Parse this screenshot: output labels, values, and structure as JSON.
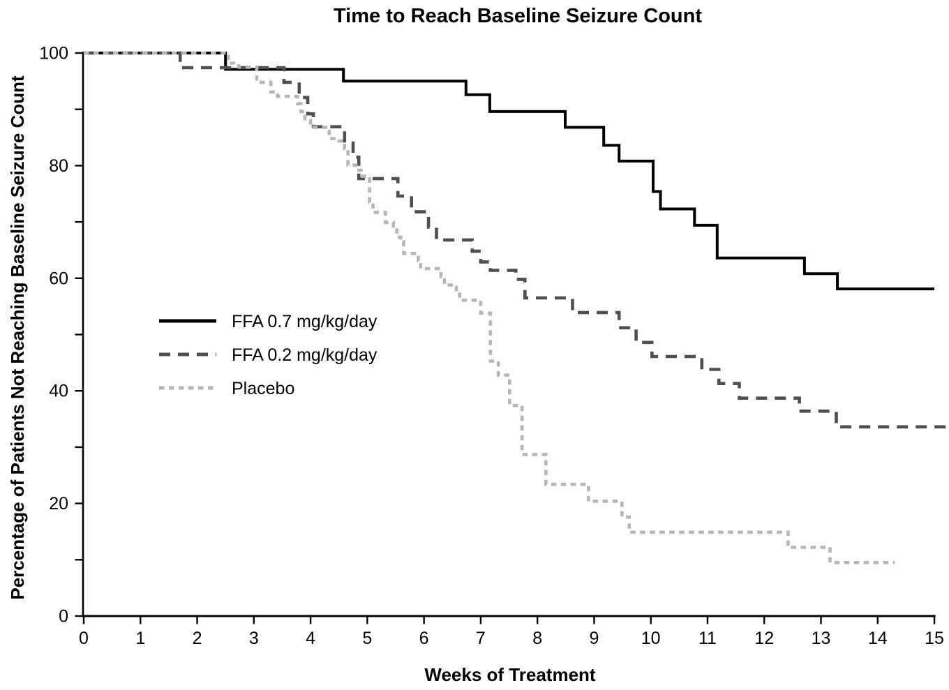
{
  "chart_data": {
    "type": "line",
    "style": "kaplan-meier-step",
    "title": "Time to Reach Baseline Seizure Count",
    "xlabel": "Weeks of Treatment",
    "ylabel": "Percentage of Patients Not Reaching Baseline Seizure Count",
    "xlim": [
      0,
      15
    ],
    "ylim": [
      0,
      100
    ],
    "x_ticks": [
      0,
      1,
      2,
      3,
      4,
      5,
      6,
      7,
      8,
      9,
      10,
      11,
      12,
      13,
      14,
      15
    ],
    "y_ticks_major": [
      0,
      20,
      40,
      60,
      80,
      100
    ],
    "y_ticks_minor": [
      10,
      30,
      50,
      70,
      90
    ],
    "grid": false,
    "legend_position": "inside-left-middle",
    "axis_color": "#000000",
    "background_color": "#ffffff",
    "series": [
      {
        "name": "FFA 0.7 mg/kg/day",
        "color": "#000000",
        "line_style": "solid",
        "dash": null,
        "line_width": 4,
        "x_end": 15.0,
        "steps": [
          [
            0,
            100
          ],
          [
            2.5,
            97.1
          ],
          [
            4.58,
            95.0
          ],
          [
            6.74,
            92.6
          ],
          [
            7.16,
            89.6
          ],
          [
            8.49,
            86.8
          ],
          [
            9.17,
            83.6
          ],
          [
            9.44,
            80.8
          ],
          [
            10.04,
            75.4
          ],
          [
            10.17,
            72.3
          ],
          [
            10.77,
            69.4
          ],
          [
            11.17,
            63.6
          ],
          [
            12.71,
            60.8
          ],
          [
            13.29,
            58.1
          ]
        ]
      },
      {
        "name": "FFA 0.2 mg/kg/day",
        "color": "#4f4f4f",
        "line_style": "dashed",
        "dash": [
          16,
          11
        ],
        "line_width": 4.6,
        "x_end": 15.2,
        "steps": [
          [
            0,
            100
          ],
          [
            1.7,
            97.4
          ],
          [
            3.53,
            94.8
          ],
          [
            3.8,
            92.1
          ],
          [
            3.95,
            89.2
          ],
          [
            4.05,
            86.9
          ],
          [
            4.6,
            84.0
          ],
          [
            4.75,
            81.5
          ],
          [
            4.85,
            77.7
          ],
          [
            5.54,
            74.6
          ],
          [
            5.78,
            71.8
          ],
          [
            6.08,
            69.1
          ],
          [
            6.22,
            66.8
          ],
          [
            6.85,
            64.8
          ],
          [
            7.0,
            62.9
          ],
          [
            7.17,
            61.4
          ],
          [
            7.62,
            59.8
          ],
          [
            7.78,
            56.5
          ],
          [
            8.62,
            53.9
          ],
          [
            9.44,
            51.2
          ],
          [
            9.74,
            48.6
          ],
          [
            10.02,
            46.1
          ],
          [
            10.9,
            43.8
          ],
          [
            11.2,
            41.3
          ],
          [
            11.56,
            38.7
          ],
          [
            12.62,
            36.4
          ],
          [
            13.27,
            33.6
          ]
        ]
      },
      {
        "name": "Placebo",
        "color": "#b6b6b6",
        "line_style": "dotted",
        "dash": [
          7.5,
          6.5
        ],
        "line_width": 4.6,
        "x_end": 14.3,
        "steps": [
          [
            0,
            100
          ],
          [
            2.55,
            98.2
          ],
          [
            2.73,
            97.5
          ],
          [
            3.05,
            94.8
          ],
          [
            3.3,
            93.1
          ],
          [
            3.42,
            92.3
          ],
          [
            3.77,
            91.0
          ],
          [
            3.83,
            89.6
          ],
          [
            3.9,
            88.0
          ],
          [
            4.0,
            86.8
          ],
          [
            4.33,
            84.8
          ],
          [
            4.5,
            84.4
          ],
          [
            4.6,
            83.0
          ],
          [
            4.66,
            80.1
          ],
          [
            4.8,
            79.2
          ],
          [
            4.92,
            78.1
          ],
          [
            5.04,
            73.5
          ],
          [
            5.1,
            71.7
          ],
          [
            5.32,
            69.9
          ],
          [
            5.46,
            69.3
          ],
          [
            5.52,
            67.3
          ],
          [
            5.59,
            66.5
          ],
          [
            5.64,
            64.4
          ],
          [
            5.9,
            63.1
          ],
          [
            5.94,
            61.7
          ],
          [
            6.3,
            60.3
          ],
          [
            6.36,
            58.8
          ],
          [
            6.48,
            58.4
          ],
          [
            6.57,
            57.5
          ],
          [
            6.63,
            56.1
          ],
          [
            7.0,
            53.8
          ],
          [
            7.17,
            45.3
          ],
          [
            7.31,
            42.8
          ],
          [
            7.51,
            37.4
          ],
          [
            7.73,
            28.7
          ],
          [
            8.15,
            23.4
          ],
          [
            8.9,
            20.4
          ],
          [
            9.49,
            17.6
          ],
          [
            9.62,
            14.9
          ],
          [
            12.42,
            12.2
          ],
          [
            13.16,
            9.5
          ]
        ]
      }
    ]
  }
}
